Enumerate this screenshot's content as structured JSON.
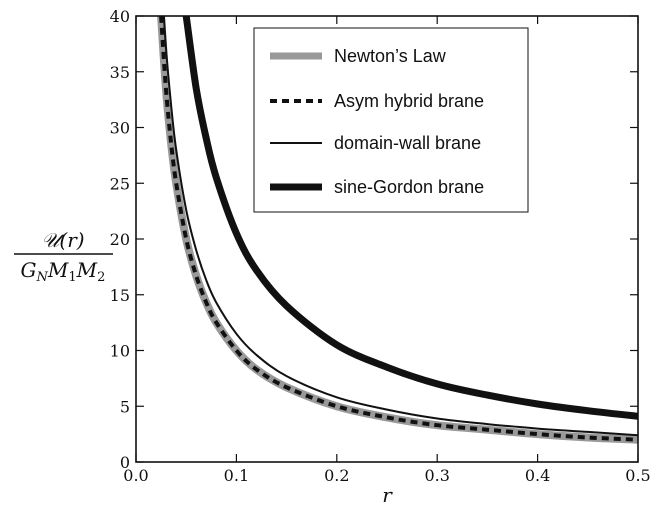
{
  "chart_data": {
    "type": "line",
    "title": "",
    "xlabel": "r",
    "ylabel": {
      "numerator": "𝒰(r)",
      "denominator": "G",
      "denominator_sub": "N",
      "denominator_rest": "M",
      "m1_sub": "1",
      "m2": "M",
      "m2_sub": "2"
    },
    "xlim": [
      0.0,
      0.5
    ],
    "ylim": [
      0,
      40
    ],
    "xticks": [
      "0.0",
      "0.1",
      "0.2",
      "0.3",
      "0.4",
      "0.5"
    ],
    "yticks": [
      "0",
      "5",
      "10",
      "15",
      "20",
      "25",
      "30",
      "35",
      "40"
    ],
    "grid": false,
    "legend_position": "top-right",
    "x": [
      0.025,
      0.03,
      0.035,
      0.04,
      0.05,
      0.06,
      0.07,
      0.08,
      0.1,
      0.12,
      0.15,
      0.2,
      0.25,
      0.3,
      0.35,
      0.4,
      0.45,
      0.5
    ],
    "series": [
      {
        "name": "Newton’s Law",
        "color": "#999999",
        "style": "solid-thick-gray",
        "values": [
          40.0,
          33.3,
          28.6,
          25.0,
          20.0,
          16.7,
          14.3,
          12.5,
          10.0,
          8.3,
          6.7,
          5.0,
          4.0,
          3.3,
          2.9,
          2.5,
          2.2,
          2.0
        ]
      },
      {
        "name": "Asym hybrid brane",
        "color": "#111111",
        "style": "dashed",
        "values": [
          40.0,
          33.3,
          28.6,
          25.0,
          20.0,
          16.7,
          14.3,
          12.5,
          10.0,
          8.3,
          6.7,
          5.0,
          4.0,
          3.3,
          2.9,
          2.5,
          2.2,
          2.0
        ]
      },
      {
        "name": "domain-wall brane",
        "color": "#111111",
        "style": "solid-thin",
        "values": [
          44.0,
          37.0,
          32.0,
          28.0,
          22.6,
          19.0,
          16.3,
          14.3,
          11.5,
          9.6,
          7.7,
          5.8,
          4.7,
          3.9,
          3.4,
          3.0,
          2.7,
          2.4
        ]
      },
      {
        "name": "sine-Gordon brane",
        "color": "#111111",
        "style": "solid-very-thick",
        "values": [
          null,
          null,
          null,
          null,
          40.0,
          33.5,
          29.0,
          25.5,
          20.5,
          17.2,
          14.0,
          10.5,
          8.5,
          7.0,
          6.0,
          5.2,
          4.6,
          4.1
        ]
      }
    ]
  }
}
